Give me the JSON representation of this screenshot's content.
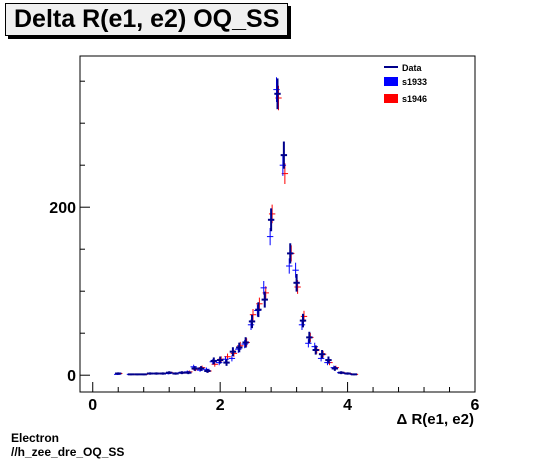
{
  "title": "Delta R(e1, e2) OQ_SS",
  "footer": {
    "line1": "Electron",
    "line2": "//h_zee_dre_OQ_SS"
  },
  "colors": {
    "data": "#00008b",
    "s1933": "#0000ff",
    "s1946": "#ff0000",
    "frame": "#000000",
    "title_bg": "#f0f0f0"
  },
  "chart_data": {
    "type": "scatter",
    "title": "Delta R(e1, e2) OQ_SS",
    "xlabel": "Δ R(e1, e2)",
    "ylabel": "",
    "xlim": [
      -0.2,
      6.0
    ],
    "ylim": [
      -20,
      380
    ],
    "xticks": [
      0,
      2,
      4,
      6
    ],
    "yticks": [
      0,
      200
    ],
    "legend_position": "top-right",
    "bin_width": 0.1,
    "series": [
      {
        "name": "Data",
        "style": "errorbar-thick",
        "x": [
          0.4,
          0.6,
          0.7,
          0.8,
          0.9,
          1.0,
          1.1,
          1.2,
          1.3,
          1.4,
          1.5,
          1.6,
          1.7,
          1.8,
          1.9,
          2.0,
          2.1,
          2.2,
          2.3,
          2.4,
          2.5,
          2.6,
          2.7,
          2.8,
          2.9,
          3.0,
          3.1,
          3.2,
          3.3,
          3.4,
          3.5,
          3.6,
          3.7,
          3.8,
          3.9,
          4.0,
          4.1
        ],
        "y": [
          2,
          1,
          1,
          1,
          2,
          2,
          2,
          3,
          2,
          3,
          3,
          8,
          8,
          5,
          17,
          18,
          15,
          28,
          33,
          39,
          64,
          78,
          90,
          185,
          335,
          262,
          145,
          110,
          65,
          45,
          30,
          25,
          18,
          8,
          3,
          2,
          1
        ]
      },
      {
        "name": "s1933",
        "style": "errorbar-thin",
        "x": [
          0.4,
          0.6,
          0.8,
          1.0,
          1.2,
          1.4,
          1.5,
          1.6,
          1.7,
          1.8,
          1.9,
          2.0,
          2.1,
          2.2,
          2.3,
          2.4,
          2.5,
          2.6,
          2.7,
          2.8,
          2.9,
          3.0,
          3.1,
          3.2,
          3.3,
          3.4,
          3.5,
          3.6,
          3.7,
          3.8,
          3.9,
          4.0,
          4.1
        ],
        "y": [
          1,
          1,
          1,
          2,
          2,
          3,
          4,
          10,
          6,
          7,
          16,
          15,
          19,
          20,
          31,
          37,
          60,
          77,
          104,
          165,
          340,
          250,
          130,
          125,
          60,
          38,
          34,
          20,
          15,
          9,
          3,
          2,
          1
        ]
      },
      {
        "name": "s1946",
        "style": "errorbar-thin",
        "x": [
          0.4,
          0.6,
          0.8,
          1.0,
          1.2,
          1.4,
          1.5,
          1.6,
          1.7,
          1.8,
          1.9,
          2.0,
          2.1,
          2.2,
          2.3,
          2.4,
          2.5,
          2.6,
          2.7,
          2.8,
          2.9,
          3.0,
          3.1,
          3.2,
          3.3,
          3.4,
          3.5,
          3.6,
          3.7,
          3.8,
          3.9,
          4.0,
          4.1
        ],
        "y": [
          2,
          1,
          1,
          2,
          3,
          3,
          4,
          7,
          9,
          5,
          13,
          19,
          22,
          26,
          35,
          39,
          72,
          85,
          98,
          192,
          330,
          240,
          145,
          105,
          70,
          45,
          30,
          25,
          15,
          9,
          3,
          2,
          1
        ]
      }
    ]
  }
}
